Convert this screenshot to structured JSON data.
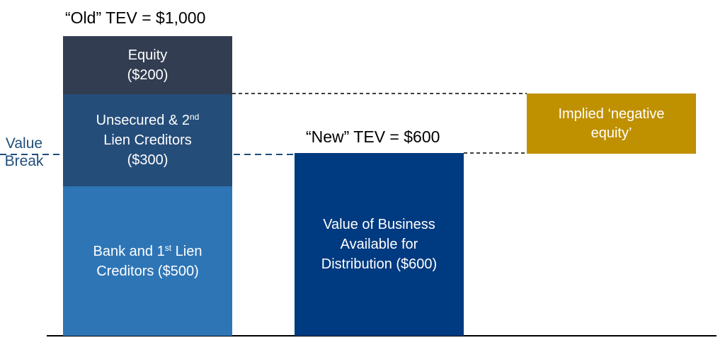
{
  "old_tev": {
    "title": "“Old” TEV = $1,000",
    "blocks": {
      "equity": {
        "line1": "Equity",
        "line2": "($200)",
        "color": "#323d52"
      },
      "unsecured": {
        "line1_a": "Unsecured & 2",
        "line1_sup": "nd",
        "line2": "Lien Creditors",
        "line3": "($300)",
        "color": "#254d7a"
      },
      "bank": {
        "line1_a": "Bank and 1",
        "line1_sup": "st",
        "line1_b": " Lien",
        "line2": "Creditors ($500)",
        "color": "#2e75b6"
      }
    }
  },
  "new_tev": {
    "title": "“New” TEV = $600",
    "block": {
      "line1": "Value of Business",
      "line2": "Available for",
      "line3": "Distribution ($600)",
      "color": "#003a80"
    }
  },
  "value_break": {
    "line1": "Value",
    "line2": "Break",
    "color": "#1f4e79"
  },
  "negative_equity": {
    "line1": "Implied ‘negative",
    "line2": "equity’",
    "color": "#bf9000"
  }
}
